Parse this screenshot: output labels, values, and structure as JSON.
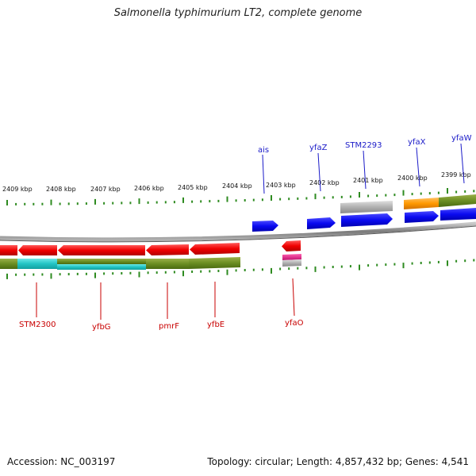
{
  "title": "Salmonella typhimurium LT2, complete genome",
  "footer": {
    "accession": "Accession: NC_003197",
    "summary": "Topology: circular; Length: 4,857,432 bp; Genes: 4,541"
  },
  "scale": {
    "labels": [
      "2409 kbp",
      "2408 kbp",
      "2407 kbp",
      "2406 kbp",
      "2405 kbp",
      "2404 kbp",
      "2403 kbp",
      "2402 kbp",
      "2401 kbp",
      "2400 kbp",
      "2399 kbp"
    ]
  },
  "genes_forward": [
    {
      "name": "ais",
      "color": "#1010e8"
    },
    {
      "name": "yfaZ",
      "color": "#1010e8"
    },
    {
      "name": "STM2293",
      "color": "#1010e8"
    },
    {
      "name": "yfaX",
      "color": "#1010e8"
    },
    {
      "name": "yfaW",
      "color": "#1010e8"
    }
  ],
  "genes_reverse": [
    {
      "name": "STM2300",
      "color": "#e00000"
    },
    {
      "name": "yfbG",
      "color": "#e00000"
    },
    {
      "name": "pmrF",
      "color": "#e00000"
    },
    {
      "name": "yfbE",
      "color": "#e00000"
    },
    {
      "name": "yfaO",
      "color": "#e00000"
    }
  ],
  "colors": {
    "forward_label": "#1a1ac8",
    "reverse_label": "#c80000",
    "backbone": "#8a8a8a",
    "tick": "#2e8b20",
    "olive": "#6b8e23",
    "cyan": "#22c4c4",
    "orange": "#ff9900",
    "gray_feature": "#a8a8a8",
    "magenta": "#e0208f"
  }
}
